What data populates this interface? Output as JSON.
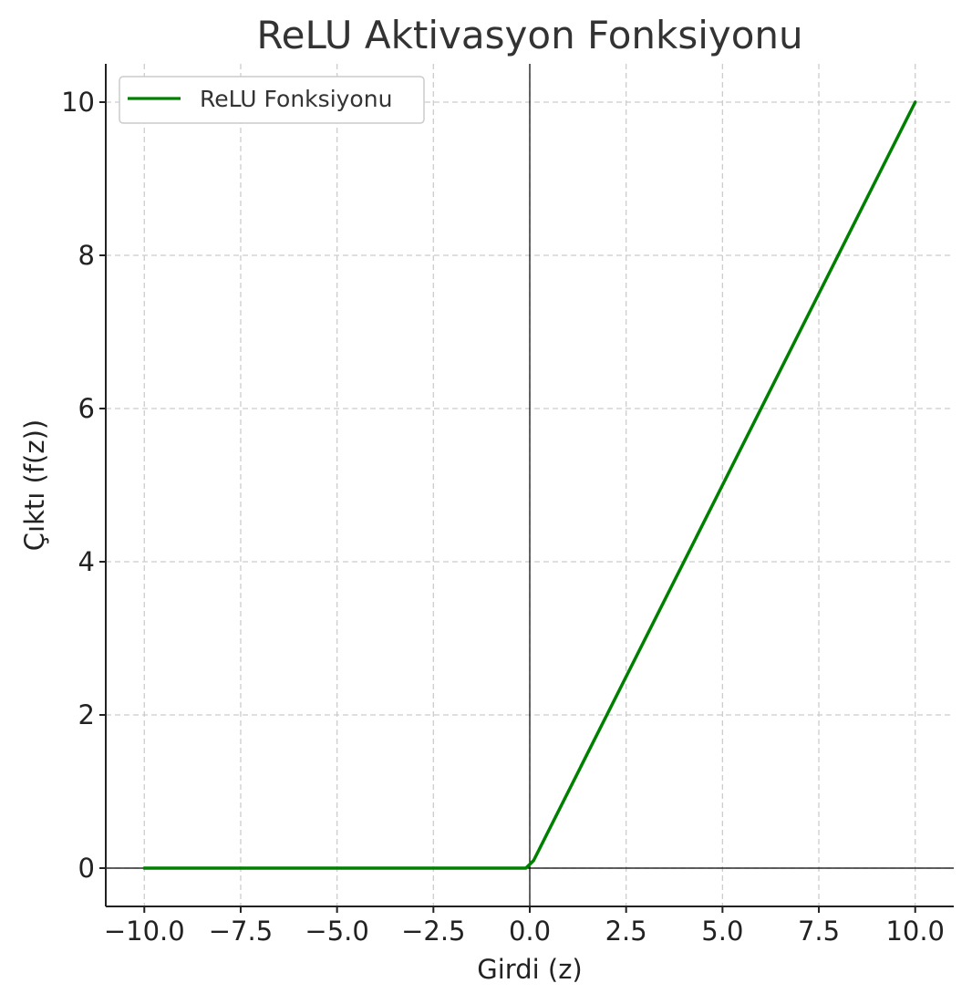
{
  "chart_data": {
    "type": "line",
    "title": "ReLU Aktivasyon Fonksiyonu",
    "xlabel": "Girdi (z)",
    "ylabel": "Çıktı (f(z))",
    "xlim": [
      -11.0,
      11.0
    ],
    "ylim": [
      -0.5,
      10.5
    ],
    "x_ticks": [
      -10.0,
      -7.5,
      -5.0,
      -2.5,
      0.0,
      2.5,
      5.0,
      7.5,
      10.0
    ],
    "x_tick_labels": [
      "−10.0",
      "−7.5",
      "−5.0",
      "−2.5",
      "0.0",
      "2.5",
      "5.0",
      "7.5",
      "10.0"
    ],
    "y_ticks": [
      0,
      2,
      4,
      6,
      8,
      10
    ],
    "y_tick_labels": [
      "0",
      "2",
      "4",
      "6",
      "8",
      "10"
    ],
    "grid": true,
    "legend_position": "top-left",
    "reference_lines": {
      "horizontal_y": 0,
      "vertical_x": 0,
      "color": "#000000"
    },
    "series": [
      {
        "name": "ReLU Fonksiyonu",
        "color": "#008000",
        "x": [
          -10.0,
          -5.0,
          -0.1,
          0.1,
          5.0,
          10.0
        ],
        "y": [
          0.0,
          0.0,
          0.0,
          0.1,
          5.0,
          10.0
        ]
      }
    ]
  }
}
